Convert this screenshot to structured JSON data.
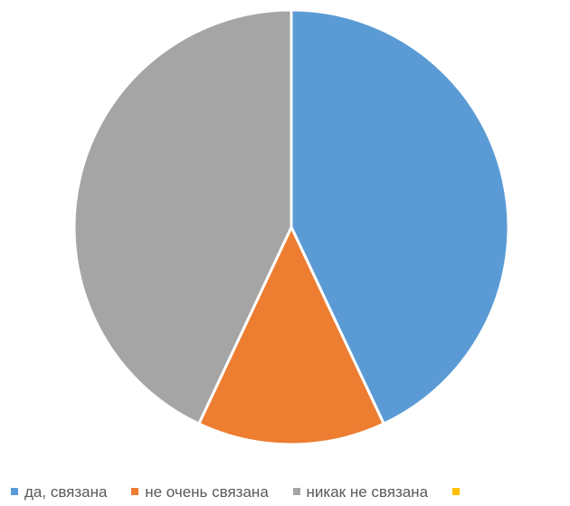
{
  "chart_data": {
    "type": "pie",
    "title": "",
    "start_angle_deg": 0,
    "direction": "clockwise",
    "slices": [
      {
        "label": "да, связана",
        "value": 43,
        "color": "#5B9BD5"
      },
      {
        "label": "не очень связана",
        "value": 14,
        "color": "#ED7D31"
      },
      {
        "label": "никак не связана",
        "value": 43,
        "color": "#A5A5A5"
      },
      {
        "label": "",
        "value": 0,
        "color": "#FFC000"
      }
    ],
    "legend": {
      "position": "bottom"
    }
  }
}
